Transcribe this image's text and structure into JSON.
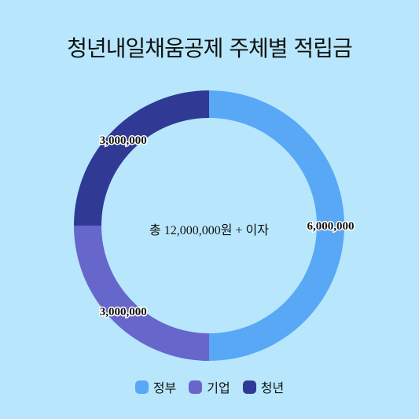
{
  "chart_data": {
    "type": "pie",
    "variant": "donut",
    "title": "청년내일채움공제 주체별 적립금",
    "center_label": "총 12,000,000원 + 이자",
    "legend_position": "bottom",
    "categories": [
      "정부",
      "기업",
      "청년"
    ],
    "values": [
      6000000,
      3000000,
      3000000
    ],
    "value_labels": [
      "6,000,000",
      "3,000,000",
      "3,000,000"
    ],
    "colors": [
      "#58a8f5",
      "#6766cb",
      "#303a94"
    ],
    "background": "#b8e7fd"
  }
}
